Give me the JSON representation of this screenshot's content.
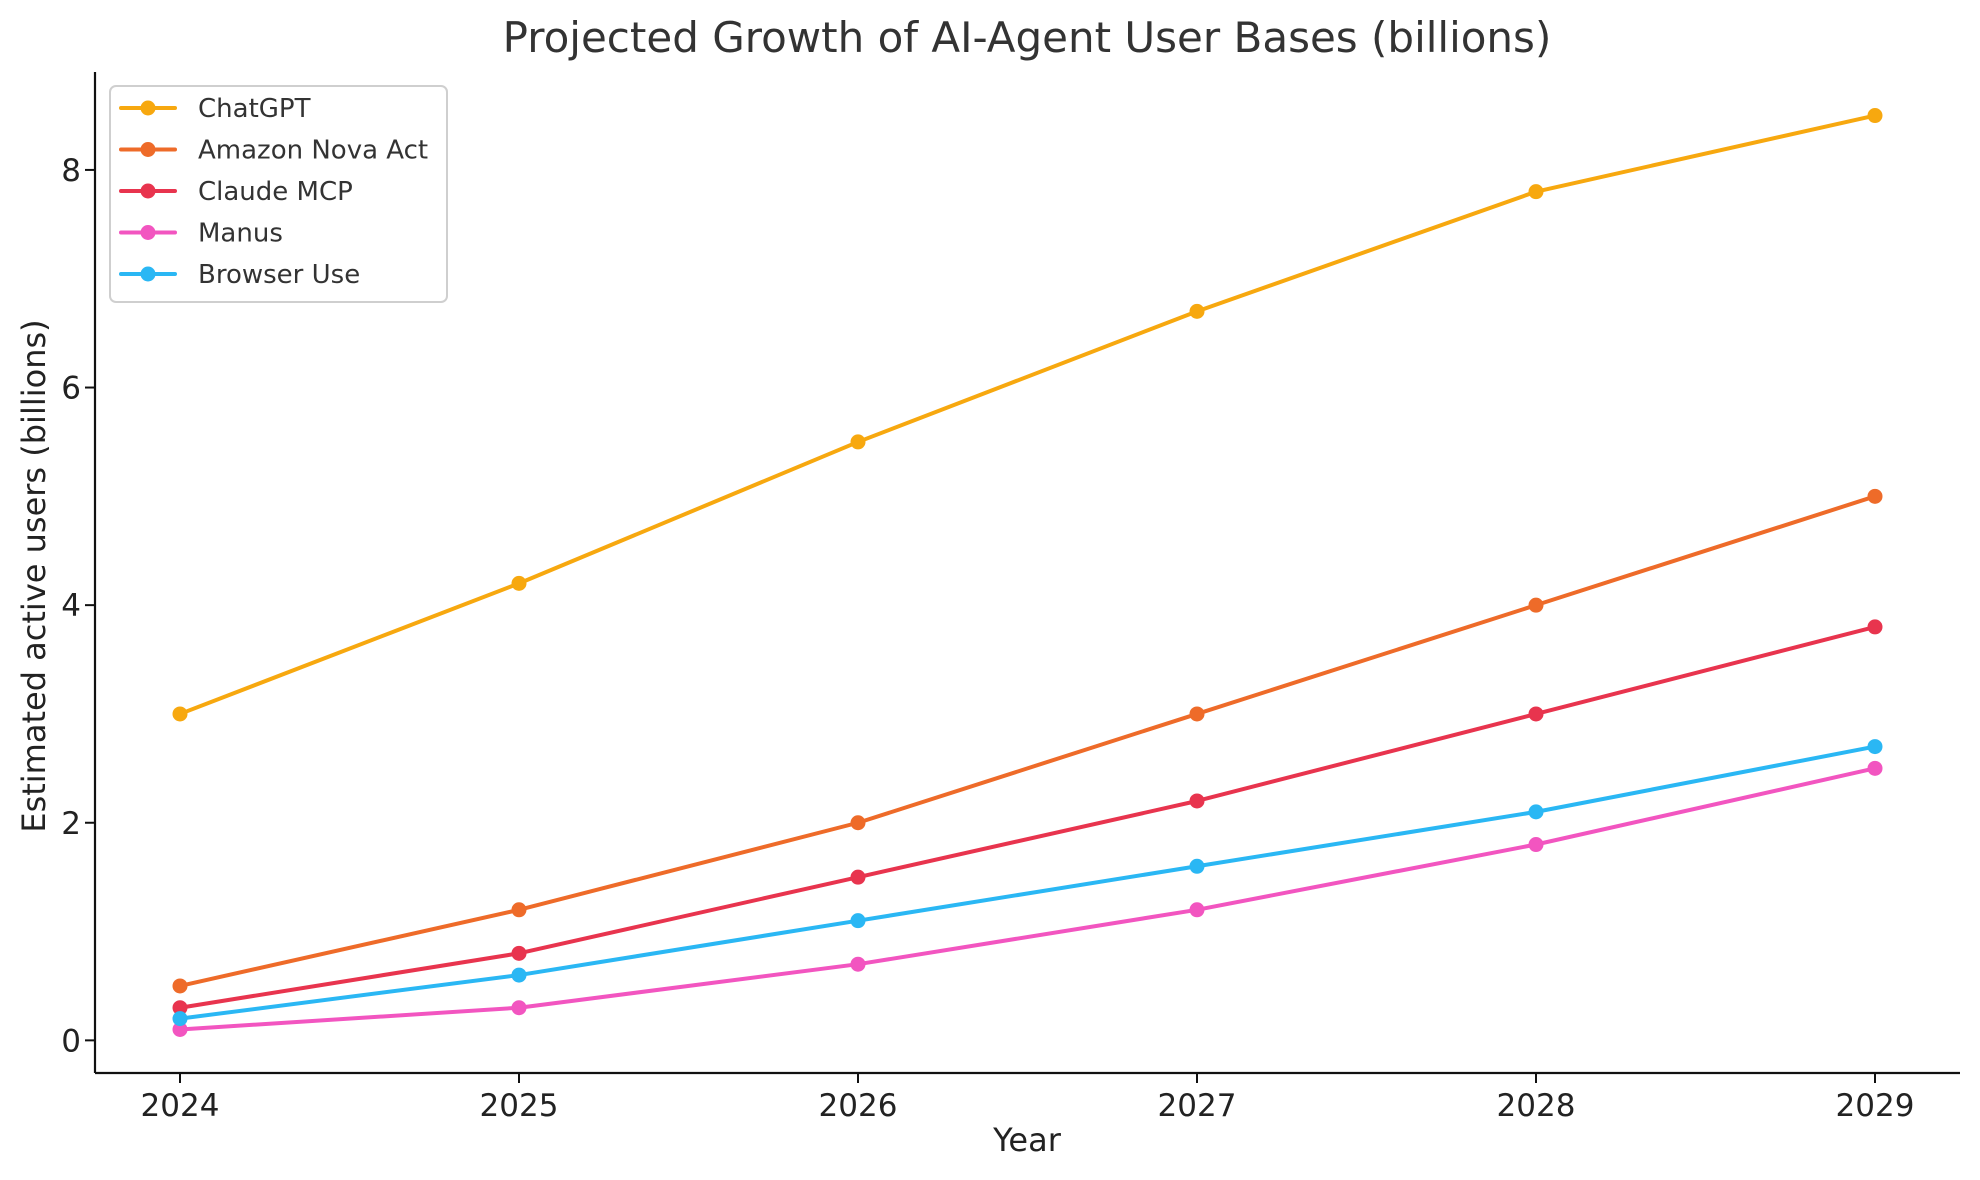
{
  "chart_data": {
    "type": "line",
    "title": "Projected Growth of AI-Agent User Bases (billions)",
    "xlabel": "Year",
    "ylabel": "Estimated active users (billions)",
    "categories": [
      "2024",
      "2025",
      "2026",
      "2027",
      "2028",
      "2029"
    ],
    "yticks": [
      0,
      2,
      4,
      6,
      8
    ],
    "ylim": [
      -0.3,
      8.9
    ],
    "grid": false,
    "legend_position": "top-left",
    "series": [
      {
        "name": "ChatGPT",
        "color": "#f7a80f",
        "values": [
          3.0,
          4.2,
          5.5,
          6.7,
          7.8,
          8.5
        ]
      },
      {
        "name": "Amazon Nova Act",
        "color": "#ee6b29",
        "values": [
          0.5,
          1.2,
          2.0,
          3.0,
          4.0,
          5.0
        ]
      },
      {
        "name": "Claude MCP",
        "color": "#e8344e",
        "values": [
          0.3,
          0.8,
          1.5,
          2.2,
          3.0,
          3.8
        ]
      },
      {
        "name": "Manus",
        "color": "#f255c0",
        "values": [
          0.1,
          0.3,
          0.7,
          1.2,
          1.8,
          2.5
        ]
      },
      {
        "name": "Browser Use",
        "color": "#2ab7f4",
        "values": [
          0.2,
          0.6,
          1.1,
          1.6,
          2.1,
          2.7
        ]
      }
    ]
  }
}
